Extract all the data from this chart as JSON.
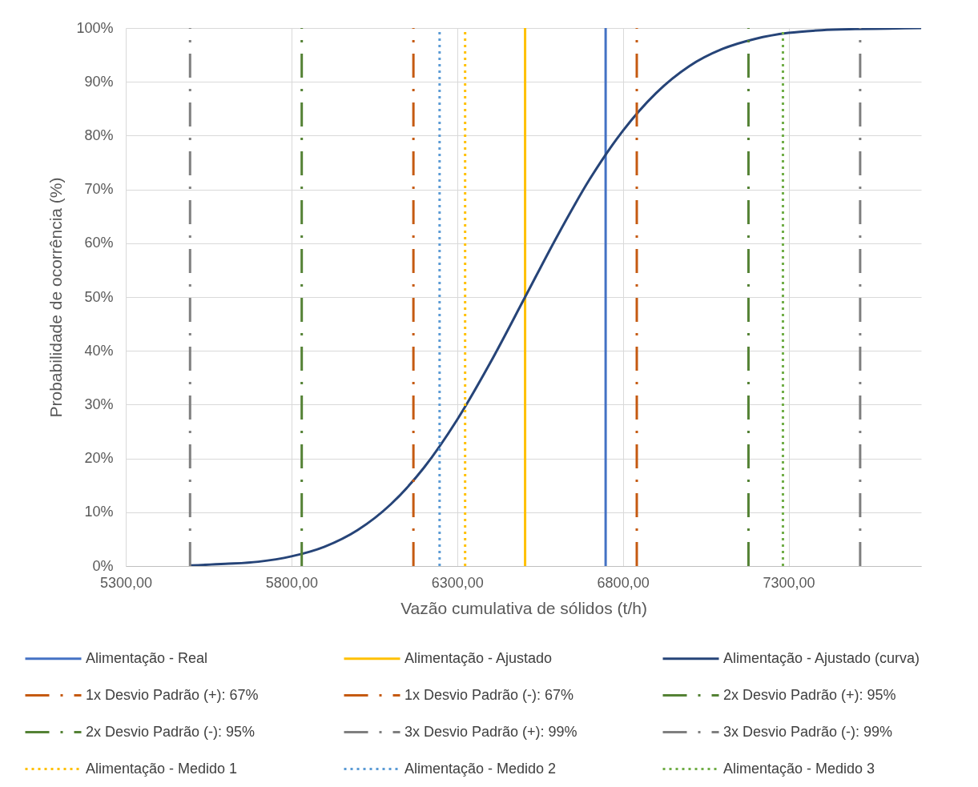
{
  "chart_data": {
    "type": "line",
    "xlabel": "Vazão cumulativa de sólidos (t/h)",
    "ylabel": "Probabilidade de ocorrência (%)",
    "xlim": [
      5300,
      7700
    ],
    "ylim": [
      0,
      100
    ],
    "xticks": [
      {
        "value": 5300,
        "label": "5300,00"
      },
      {
        "value": 5800,
        "label": "5800,00"
      },
      {
        "value": 6300,
        "label": "6300,00"
      },
      {
        "value": 6800,
        "label": "6800,00"
      },
      {
        "value": 7300,
        "label": "7300,00"
      }
    ],
    "yticks": [
      {
        "value": 0,
        "label": "0%"
      },
      {
        "value": 10,
        "label": "10%"
      },
      {
        "value": 20,
        "label": "20%"
      },
      {
        "value": 30,
        "label": "30%"
      },
      {
        "value": 40,
        "label": "40%"
      },
      {
        "value": 50,
        "label": "50%"
      },
      {
        "value": 60,
        "label": "60%"
      },
      {
        "value": 70,
        "label": "70%"
      },
      {
        "value": 80,
        "label": "80%"
      },
      {
        "value": 90,
        "label": "90%"
      },
      {
        "value": 100,
        "label": "100%"
      }
    ],
    "grid": true,
    "legend": "bottom",
    "series": [
      {
        "name": "Alimentação - Real",
        "color": "#4472c4",
        "line_style": "solid",
        "x": [
          6748,
          6748
        ],
        "values": [
          0,
          100
        ]
      },
      {
        "name": "Alimentação - Ajustado",
        "color": "#ffc000",
        "line_style": "solid",
        "x": [
          6505,
          6505
        ],
        "values": [
          0,
          100
        ]
      },
      {
        "name": "Alimentação - Ajustado (curva)",
        "color": "#264478",
        "line_style": "solid",
        "x": [
          5494,
          5600,
          5700,
          5800,
          5900,
          6000,
          6100,
          6200,
          6300,
          6400,
          6505,
          6600,
          6700,
          6800,
          6900,
          7000,
          7100,
          7200,
          7300,
          7400,
          7500,
          7600,
          7700
        ],
        "values": [
          0.1,
          0.4,
          0.8,
          1.8,
          3.6,
          6.7,
          11.5,
          18.3,
          27.2,
          37.8,
          50,
          61.1,
          71.9,
          80.9,
          87.9,
          92.9,
          96.1,
          98.0,
          99.1,
          99.6,
          99.8,
          99.9,
          100
        ]
      },
      {
        "name": "1x Desvio Padrão (+): 67%",
        "color": "#c55a11",
        "line_style": "dashdot",
        "x": [
          6842,
          6842
        ],
        "values": [
          0,
          100
        ]
      },
      {
        "name": "1x Desvio Padrão (-): 67%",
        "color": "#c55a11",
        "line_style": "dashdot",
        "x": [
          6168,
          6168
        ],
        "values": [
          0,
          100
        ]
      },
      {
        "name": "2x Desvio Padrão (+): 95%",
        "color": "#548235",
        "line_style": "dashdot",
        "x": [
          7179,
          7179
        ],
        "values": [
          0,
          100
        ]
      },
      {
        "name": "2x Desvio Padrão (-): 95%",
        "color": "#548235",
        "line_style": "dashdot",
        "x": [
          5831,
          5831
        ],
        "values": [
          0,
          100
        ]
      },
      {
        "name": "3x Desvio Padrão (+): 99%",
        "color": "#7f7f7f",
        "line_style": "dashdot",
        "x": [
          7516,
          7516
        ],
        "values": [
          0,
          100
        ]
      },
      {
        "name": "3x Desvio Padrão (-): 99%",
        "color": "#7f7f7f",
        "line_style": "dashdot",
        "x": [
          5494,
          5494
        ],
        "values": [
          0,
          100
        ]
      },
      {
        "name": "Alimentação - Medido 1",
        "color": "#ffc000",
        "line_style": "dotted",
        "x": [
          6324,
          6324
        ],
        "values": [
          0,
          100
        ]
      },
      {
        "name": "Alimentação - Medido 2",
        "color": "#5b9bd5",
        "line_style": "dotted",
        "x": [
          6247,
          6247
        ],
        "values": [
          0,
          100
        ]
      },
      {
        "name": "Alimentação - Medido 3",
        "color": "#70ad47",
        "line_style": "dotted",
        "x": [
          7283,
          7283
        ],
        "values": [
          0,
          100
        ]
      }
    ]
  }
}
